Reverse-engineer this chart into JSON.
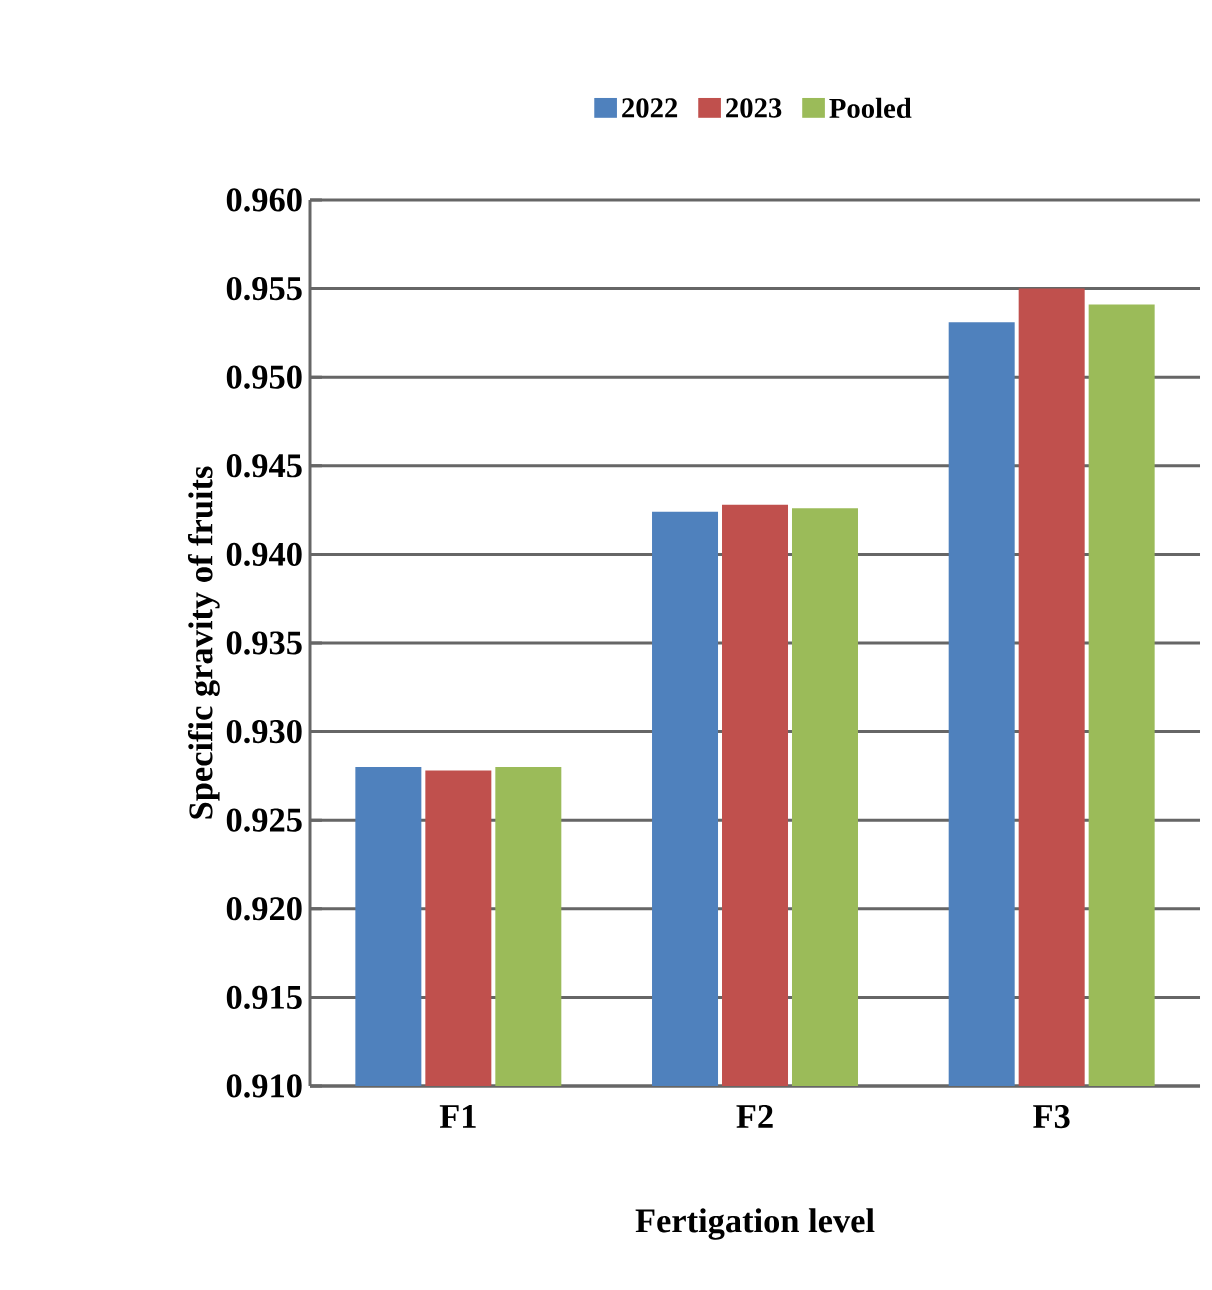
{
  "chart_data": {
    "type": "bar",
    "xlabel": "Fertigation level",
    "ylabel": "Specific gravity of fruits",
    "categories": [
      "F1",
      "F2",
      "F3"
    ],
    "series": [
      {
        "name": "2022",
        "color": "#4f81bd",
        "values": [
          0.928,
          0.9424,
          0.9531
        ]
      },
      {
        "name": "2023",
        "color": "#c0504d",
        "values": [
          0.9278,
          0.9428,
          0.955
        ]
      },
      {
        "name": "Pooled",
        "color": "#9bbb59",
        "values": [
          0.928,
          0.9426,
          0.9541
        ]
      }
    ],
    "ylim": [
      0.91,
      0.96
    ],
    "yticks": [
      {
        "value": 0.91,
        "label": "0.910"
      },
      {
        "value": 0.915,
        "label": "0.915"
      },
      {
        "value": 0.92,
        "label": "0.920"
      },
      {
        "value": 0.925,
        "label": "0.925"
      },
      {
        "value": 0.93,
        "label": "0.930"
      },
      {
        "value": 0.935,
        "label": "0.935"
      },
      {
        "value": 0.94,
        "label": "0.940"
      },
      {
        "value": 0.945,
        "label": "0.945"
      },
      {
        "value": 0.95,
        "label": "0.950"
      },
      {
        "value": 0.955,
        "label": "0.955"
      },
      {
        "value": 0.96,
        "label": "0.960"
      }
    ],
    "grid": "y",
    "legend": "top"
  }
}
